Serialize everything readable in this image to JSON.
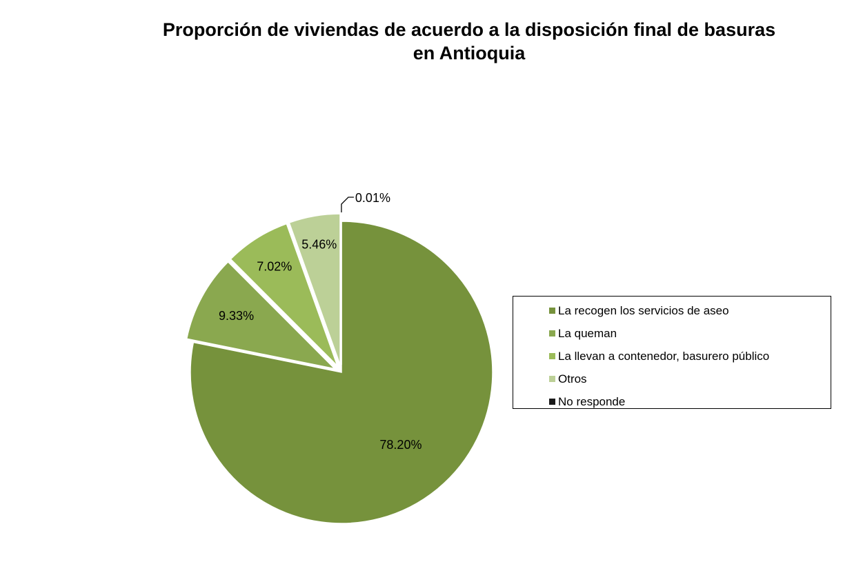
{
  "chart_data": {
    "type": "pie",
    "title_lines": [
      "Proporción de viviendas de acuerdo a la disposición final de basuras",
      "en Antioquia"
    ],
    "categories": [
      "La recogen los servicios de aseo",
      "La queman",
      "La llevan a contenedor, basurero público",
      "Otros",
      "No responde"
    ],
    "values": [
      78.2,
      9.33,
      7.02,
      5.46,
      0.01
    ],
    "data_labels": [
      "78.20%",
      "9.33%",
      "7.02%",
      "5.46%",
      "0.01%"
    ],
    "colors": [
      "#76923c",
      "#8aa84f",
      "#9bbb59",
      "#bcd097",
      "#1a1a1a"
    ],
    "exploded": [
      false,
      true,
      true,
      true,
      true
    ],
    "legend_position": "right"
  }
}
